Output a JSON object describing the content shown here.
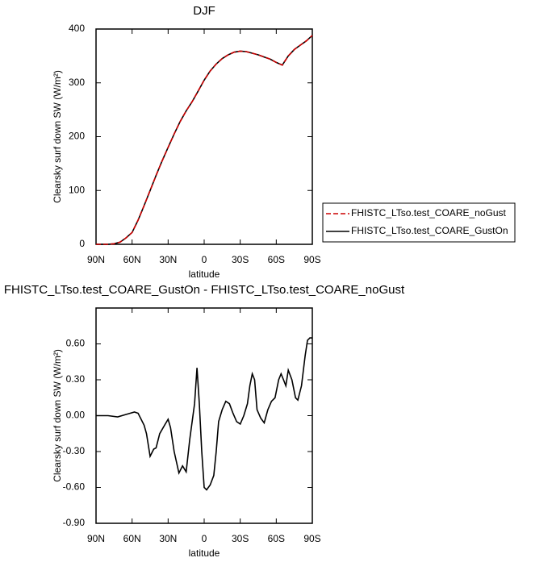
{
  "chart_data": [
    {
      "type": "line",
      "title": "DJF",
      "xlabel": "latitude",
      "ylabel": "Clearsky surf down SW (W/m²)",
      "x": [
        90,
        85,
        80,
        75,
        70,
        65,
        60,
        55,
        50,
        45,
        40,
        35,
        30,
        25,
        20,
        15,
        10,
        5,
        0,
        -5,
        -10,
        -15,
        -20,
        -25,
        -30,
        -35,
        -40,
        -45,
        -50,
        -55,
        -60,
        -65,
        -70,
        -75,
        -80,
        -85,
        -90
      ],
      "xlim": [
        90,
        -90
      ],
      "xticks": [
        {
          "value": 90,
          "label": "90N"
        },
        {
          "value": 60,
          "label": "60N"
        },
        {
          "value": 30,
          "label": "30N"
        },
        0,
        {
          "value": -30,
          "label": "30S"
        },
        {
          "value": -60,
          "label": "60S"
        },
        {
          "value": -90,
          "label": "90S"
        }
      ],
      "ylim": [
        0,
        400
      ],
      "yticks": [
        0,
        100,
        200,
        300,
        400
      ],
      "legend": "outside-right",
      "series": [
        {
          "name": "FHISTC_LTso.test_COARE_noGust",
          "color": "#cc0000",
          "style": "dashed",
          "values": [
            0,
            0,
            0,
            1,
            4,
            12,
            22,
            45,
            72,
            100,
            128,
            155,
            180,
            205,
            228,
            248,
            265,
            285,
            305,
            322,
            335,
            345,
            352,
            357,
            359,
            358,
            355,
            352,
            348,
            344,
            338,
            333,
            350,
            362,
            370,
            378,
            388
          ]
        },
        {
          "name": "FHISTC_LTso.test_COARE_GustOn",
          "color": "#000000",
          "style": "solid",
          "values": [
            0,
            0,
            0,
            1,
            4,
            12,
            22,
            45,
            72,
            100,
            128,
            155,
            180,
            205,
            228,
            248,
            265,
            285,
            305,
            322,
            335,
            345,
            352,
            357,
            359,
            358,
            355,
            352,
            348,
            344,
            338,
            333,
            350,
            362,
            370,
            378,
            388
          ]
        }
      ]
    },
    {
      "type": "line",
      "title": "FHISTC_LTso.test_COARE_GustOn - FHISTC_LTso.test_COARE_noGust",
      "xlabel": "latitude",
      "ylabel": "Clearsky surf down SW (W/m²)",
      "x": [
        90,
        80,
        72,
        65,
        58,
        55,
        50,
        48,
        45,
        42,
        40,
        37,
        33,
        30,
        28,
        25,
        21,
        18,
        15,
        12,
        8,
        6,
        4,
        2,
        0,
        -2,
        -5,
        -8,
        -10,
        -12,
        -15,
        -18,
        -21,
        -24,
        -27,
        -30,
        -33,
        -36,
        -38,
        -40,
        -42,
        -44,
        -47,
        -50,
        -53,
        -56,
        -59,
        -62,
        -64,
        -66,
        -68,
        -70,
        -73,
        -76,
        -78,
        -81,
        -84,
        -86,
        -88,
        -90
      ],
      "xlim": [
        90,
        -90
      ],
      "xticks": [
        {
          "value": 90,
          "label": "90N"
        },
        {
          "value": 60,
          "label": "60N"
        },
        {
          "value": 30,
          "label": "30N"
        },
        0,
        {
          "value": -30,
          "label": "30S"
        },
        {
          "value": -60,
          "label": "60S"
        },
        {
          "value": -90,
          "label": "90S"
        }
      ],
      "ylim": [
        -0.9,
        0.9
      ],
      "yticks": [
        {
          "value": -0.9,
          "label": "-0.90"
        },
        {
          "value": -0.6,
          "label": "-0.60"
        },
        {
          "value": -0.3,
          "label": "-0.30"
        },
        {
          "value": 0,
          "label": "0.00"
        },
        {
          "value": 0.3,
          "label": "0.30"
        },
        {
          "value": 0.6,
          "label": "0.60"
        }
      ],
      "series": [
        {
          "color": "#000000",
          "style": "solid",
          "values": [
            0,
            0,
            -0.01,
            0.01,
            0.03,
            0.02,
            -0.08,
            -0.15,
            -0.34,
            -0.28,
            -0.27,
            -0.15,
            -0.08,
            -0.03,
            -0.1,
            -0.3,
            -0.48,
            -0.42,
            -0.47,
            -0.2,
            0.1,
            0.4,
            0.1,
            -0.3,
            -0.6,
            -0.62,
            -0.58,
            -0.5,
            -0.3,
            -0.05,
            0.05,
            0.12,
            0.1,
            0.02,
            -0.05,
            -0.07,
            0,
            0.1,
            0.25,
            0.35,
            0.3,
            0.05,
            -0.02,
            -0.06,
            0.05,
            0.12,
            0.15,
            0.3,
            0.35,
            0.3,
            0.25,
            0.38,
            0.3,
            0.15,
            0.13,
            0.25,
            0.5,
            0.63,
            0.65,
            0.65
          ]
        }
      ]
    }
  ]
}
